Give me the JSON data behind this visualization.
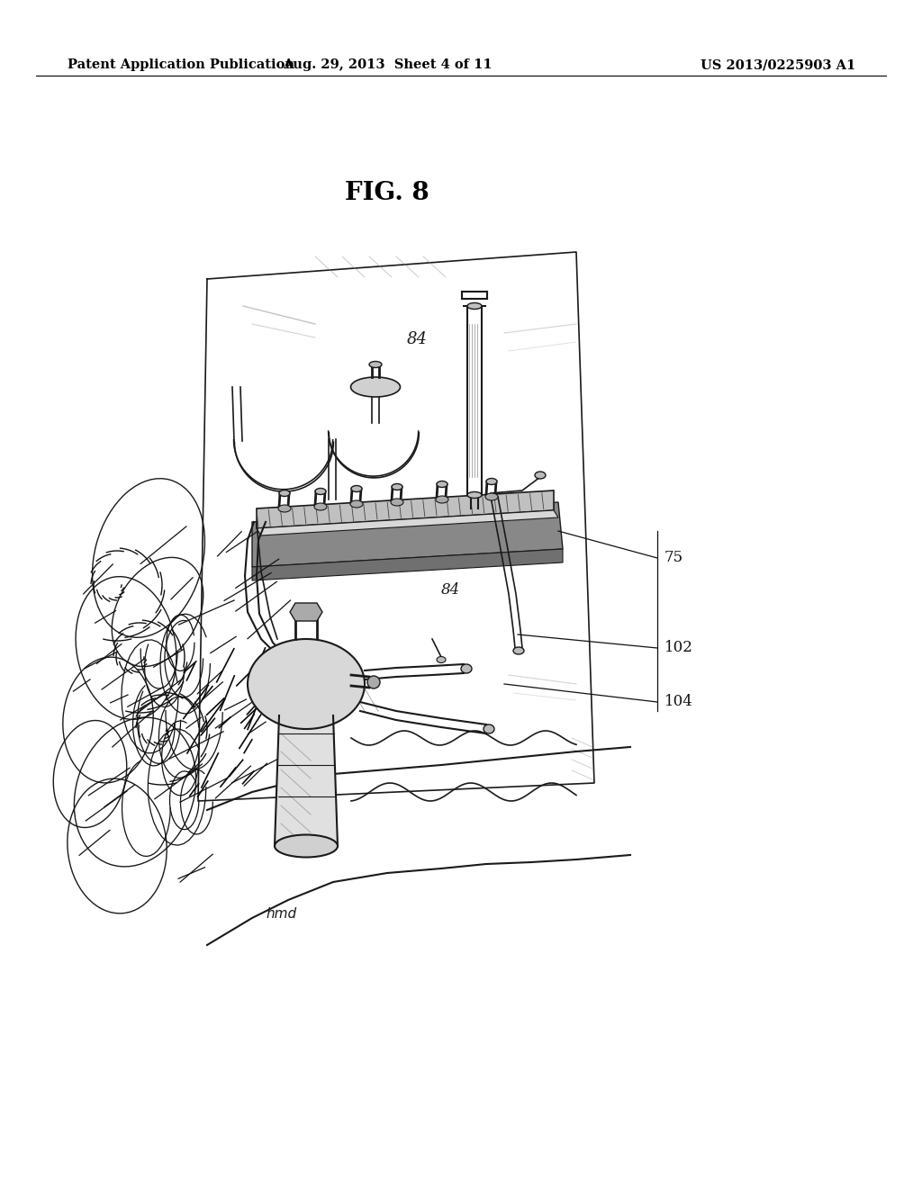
{
  "background_color": "#ffffff",
  "header_left": "Patent Application Publication",
  "header_center": "Aug. 29, 2013  Sheet 4 of 11",
  "header_right": "US 2013/0225903 A1",
  "fig_label": "FIG. 8",
  "header_fontsize": 10.5,
  "fig_label_fontsize": 20,
  "ref_fontsize": 12,
  "signature_text": "hmd"
}
